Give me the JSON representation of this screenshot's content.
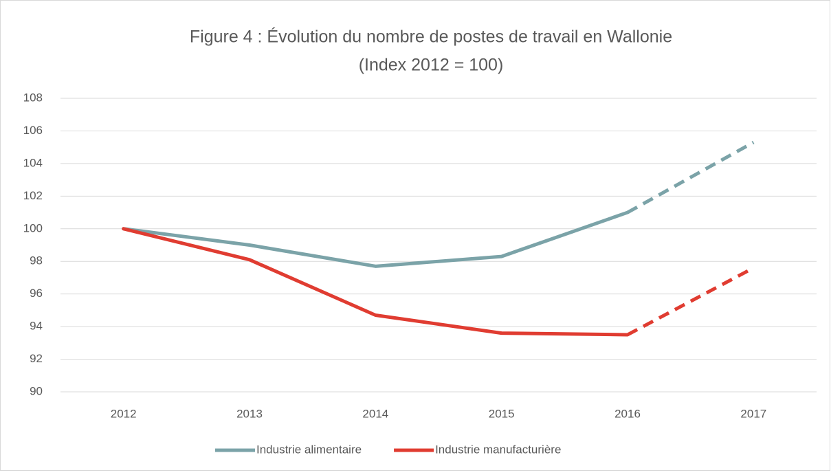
{
  "chart_data": {
    "type": "line",
    "title": "Figure 4 : Évolution du nombre de postes de travail en Wallonie",
    "subtitle": "(Index 2012 = 100)",
    "categories": [
      "2012",
      "2013",
      "2014",
      "2015",
      "2016",
      "2017"
    ],
    "series": [
      {
        "name": "Industrie alimentaire",
        "color": "#7ba3a8",
        "values": [
          100,
          99.0,
          97.7,
          98.3,
          101.0,
          105.3
        ],
        "dashed_from": 4
      },
      {
        "name": "Industrie manufacturière",
        "color": "#e03c31",
        "values": [
          100,
          98.1,
          94.7,
          93.6,
          93.5,
          97.6
        ],
        "dashed_from": 4
      }
    ],
    "ylim": [
      90,
      108
    ],
    "yticks": [
      90,
      92,
      94,
      96,
      98,
      100,
      102,
      104,
      106,
      108
    ],
    "grid": true,
    "legend": "bottom"
  }
}
